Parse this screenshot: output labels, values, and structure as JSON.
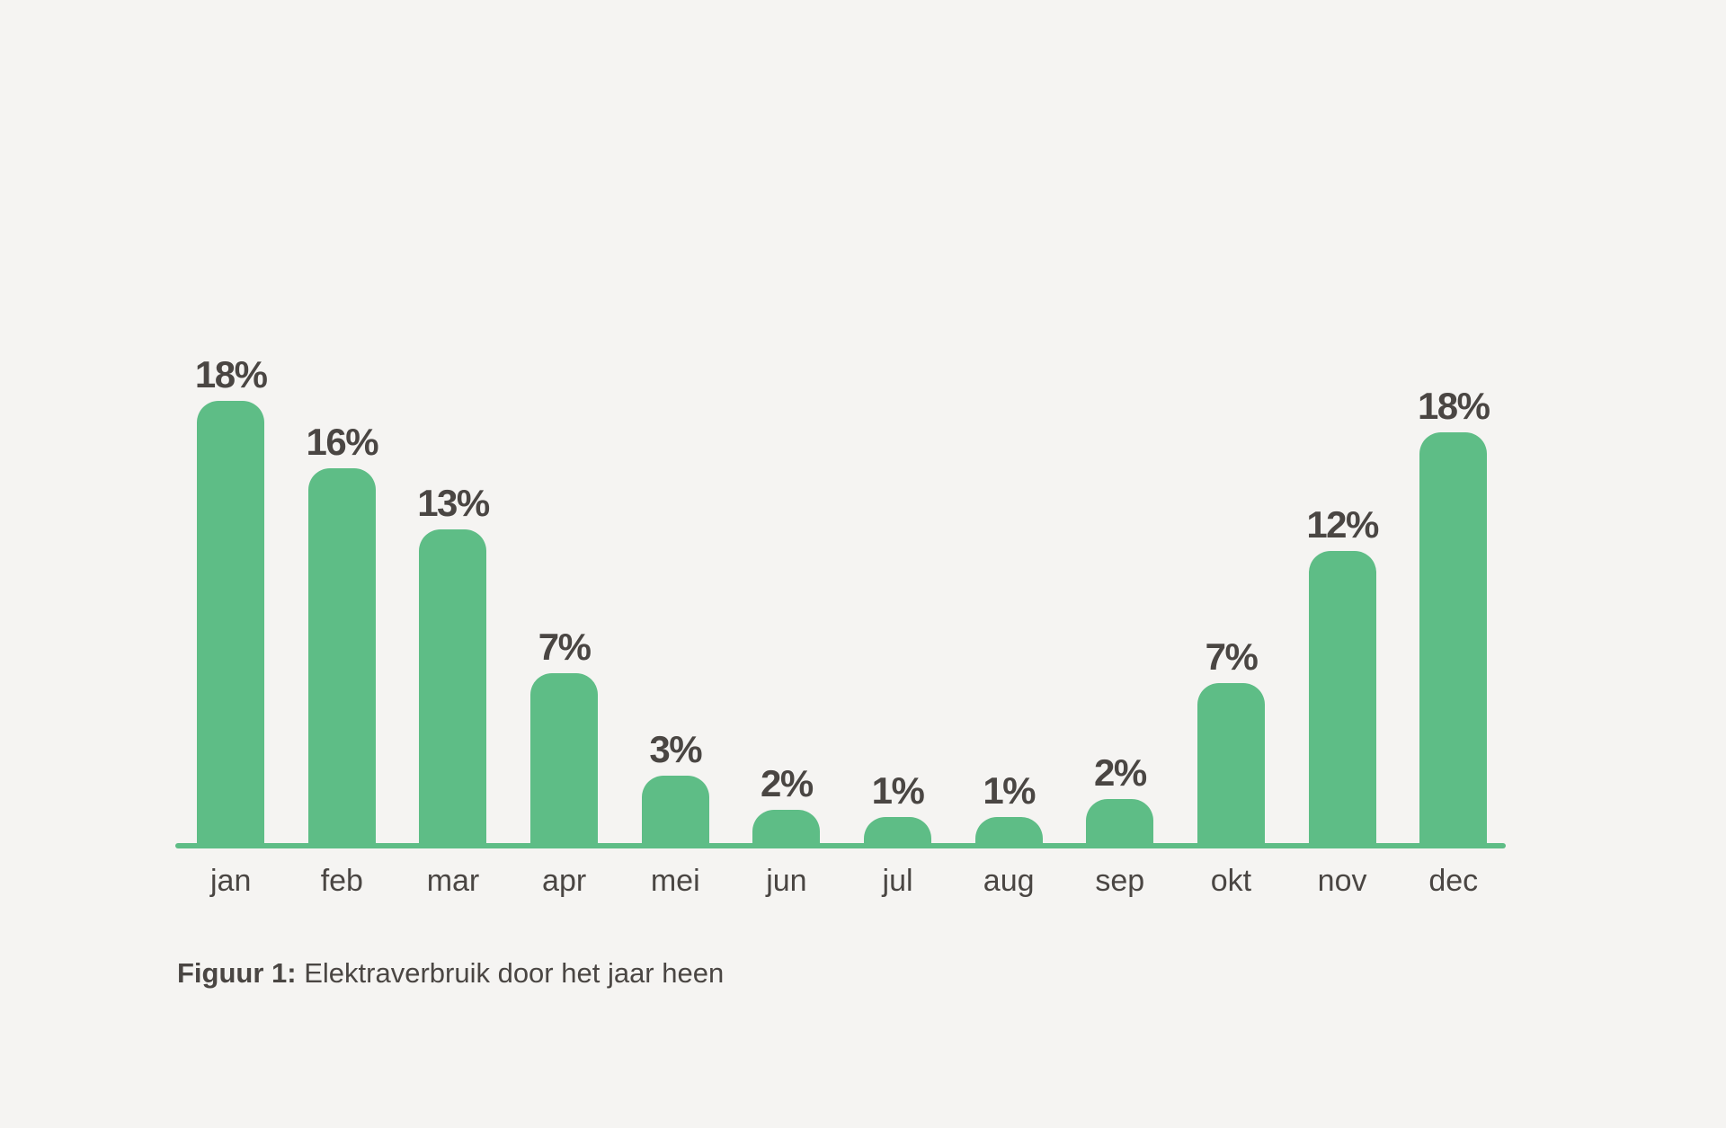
{
  "background_color": "#f5f4f2",
  "chart_data": {
    "type": "bar",
    "title": "Elektraverbruik door het jaar heen",
    "categories": [
      "jan",
      "feb",
      "mar",
      "apr",
      "mei",
      "jun",
      "jul",
      "aug",
      "sep",
      "okt",
      "nov",
      "dec"
    ],
    "values": [
      18,
      16,
      13,
      7,
      3,
      2,
      1,
      1,
      2,
      7,
      12,
      18
    ],
    "value_labels": [
      "18%",
      "16%",
      "13%",
      "7%",
      "3%",
      "2%",
      "1%",
      "1%",
      "2%",
      "7%",
      "12%",
      "18%"
    ],
    "unit": "%",
    "xlabel": "",
    "ylabel": "",
    "ylim": [
      0,
      20
    ],
    "grid": false,
    "legend": false,
    "bar_color": "#5ebd86",
    "axis_line_color": "#5ebd86",
    "label_color": "#4a4643"
  },
  "caption": {
    "prefix": "Figuur 1:",
    "text": " Elektraverbruik door het jaar heen"
  }
}
